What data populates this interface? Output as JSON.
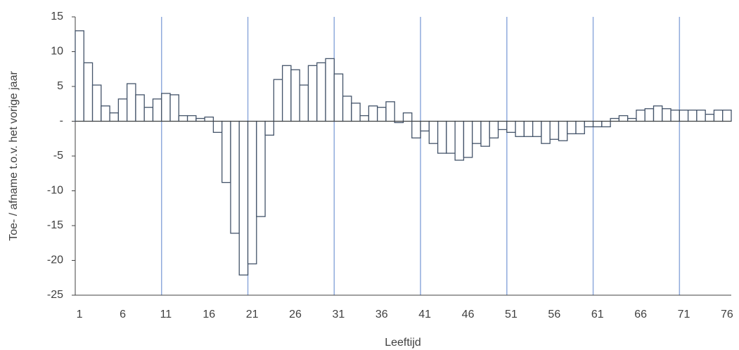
{
  "chart_data": {
    "type": "bar",
    "y_label": "Toe- / afname t.o.v. het vorige jaar",
    "x_label": "Leeftijd",
    "categories": [
      "1",
      null,
      null,
      null,
      null,
      "6",
      null,
      null,
      null,
      null,
      "11",
      null,
      null,
      null,
      null,
      "16",
      null,
      null,
      null,
      null,
      "21",
      null,
      null,
      null,
      null,
      "26",
      null,
      null,
      null,
      null,
      "31",
      null,
      null,
      null,
      null,
      "36",
      null,
      null,
      null,
      null,
      "41",
      null,
      null,
      null,
      null,
      "46",
      null,
      null,
      null,
      null,
      "51",
      null,
      null,
      null,
      null,
      "56",
      null,
      null,
      null,
      null,
      "61",
      null,
      null,
      null,
      null,
      "66",
      null,
      null,
      null,
      null,
      "71",
      null,
      null,
      null,
      null,
      "76"
    ],
    "values": [
      13,
      8.4,
      5.2,
      2.2,
      1.2,
      3.2,
      5.4,
      3.8,
      2.0,
      3.2,
      4.0,
      3.8,
      0.8,
      0.8,
      0.4,
      0.6,
      -1.6,
      -8.8,
      -16.1,
      -22.1,
      -20.5,
      -13.7,
      -2.0,
      6.0,
      8.0,
      7.4,
      5.2,
      8.0,
      8.4,
      9.0,
      6.8,
      3.6,
      2.6,
      0.8,
      2.2,
      2.0,
      2.8,
      -0.2,
      1.2,
      -2.4,
      -1.4,
      -3.2,
      -4.6,
      -4.6,
      -5.6,
      -5.2,
      -3.2,
      -3.6,
      -2.4,
      -1.2,
      -1.6,
      -2.2,
      -2.2,
      -2.2,
      -3.2,
      -2.6,
      -2.8,
      -1.8,
      -1.8,
      -0.8,
      -0.8,
      -0.8,
      0.4,
      0.8,
      0.4,
      1.6,
      1.8,
      2.2,
      1.8,
      1.6,
      1.6,
      1.6,
      1.6,
      1.0,
      1.6,
      1.6
    ],
    "color": "#44546a",
    "ylim": [
      -25,
      15
    ],
    "yticks": [
      -25,
      -20,
      -15,
      -10,
      -5,
      {
        "value": 0,
        "label": "-"
      },
      5,
      10,
      15
    ],
    "grid": true
  }
}
